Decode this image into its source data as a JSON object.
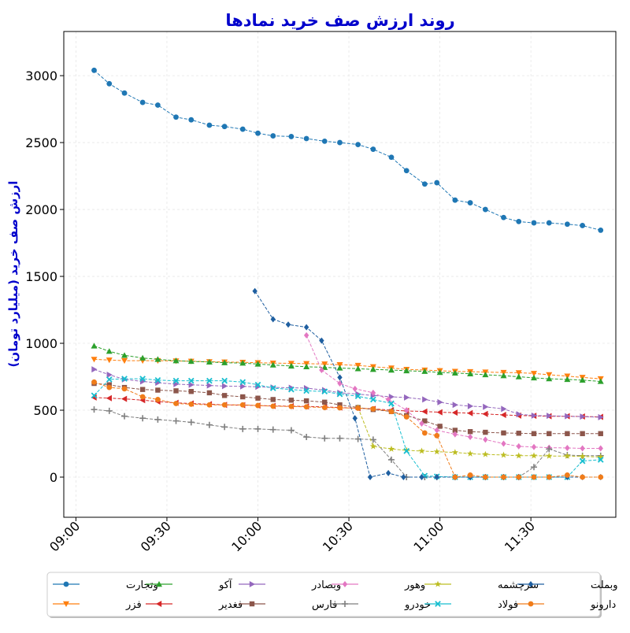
{
  "chart_data": {
    "type": "line",
    "title": "روند ارزش صف خرید نمادها",
    "xlabel": "",
    "ylabel": "ارزش صف خرید (میلیارد تومان)",
    "title_color": "#0000cc",
    "ylim": [
      -300,
      3330
    ],
    "xlim_minutes": [
      536,
      718
    ],
    "yticks": [
      0,
      500,
      1000,
      1500,
      2000,
      2500,
      3000
    ],
    "xticks": [
      {
        "value": "09:00",
        "min": 540
      },
      {
        "value": "09:30",
        "min": 570
      },
      {
        "value": "10:00",
        "min": 600
      },
      {
        "value": "10:30",
        "min": 630
      },
      {
        "value": "11:00",
        "min": 660
      },
      {
        "value": "11:30",
        "min": 690
      }
    ],
    "grid": true,
    "legend_position": "bottom",
    "series": [
      {
        "name": "وتجارت",
        "color": "#1f77b4",
        "marker": "circle",
        "x": [
          "09:06",
          "09:11",
          "09:16",
          "09:22",
          "09:27",
          "09:33",
          "09:38",
          "09:44",
          "09:49",
          "09:55",
          "10:00",
          "10:05",
          "10:11",
          "10:16",
          "10:22",
          "10:27",
          "10:33",
          "10:38",
          "10:44",
          "10:49",
          "10:55",
          "10:59",
          "11:05",
          "11:10",
          "11:15",
          "11:21",
          "11:26",
          "11:31",
          "11:36",
          "11:42",
          "11:47",
          "11:53"
        ],
        "values": [
          3040,
          2940,
          2870,
          2800,
          2780,
          2690,
          2670,
          2630,
          2620,
          2600,
          2570,
          2550,
          2545,
          2530,
          2510,
          2500,
          2485,
          2450,
          2390,
          2290,
          2190,
          2200,
          2070,
          2050,
          2000,
          1940,
          1910,
          1900,
          1900,
          1890,
          1880,
          1845
        ]
      },
      {
        "name": "فزر",
        "color": "#ff7f0e",
        "marker": "triangle-down",
        "x": [
          "09:06",
          "09:11",
          "09:16",
          "09:22",
          "09:27",
          "09:33",
          "09:38",
          "09:44",
          "09:49",
          "09:55",
          "10:00",
          "10:05",
          "10:11",
          "10:16",
          "10:22",
          "10:27",
          "10:33",
          "10:38",
          "10:44",
          "10:49",
          "10:55",
          "11:00",
          "11:05",
          "11:10",
          "11:15",
          "11:21",
          "11:26",
          "11:31",
          "11:36",
          "11:42",
          "11:47",
          "11:53"
        ],
        "values": [
          880,
          875,
          870,
          870,
          870,
          868,
          866,
          862,
          860,
          858,
          855,
          852,
          850,
          848,
          845,
          840,
          835,
          825,
          815,
          805,
          800,
          795,
          790,
          788,
          785,
          782,
          780,
          775,
          765,
          755,
          745,
          735
        ]
      },
      {
        "name": "آکو",
        "color": "#2ca02c",
        "marker": "triangle-up",
        "x": [
          "09:06",
          "09:11",
          "09:16",
          "09:22",
          "09:27",
          "09:33",
          "09:38",
          "09:44",
          "09:49",
          "09:55",
          "10:00",
          "10:05",
          "10:11",
          "10:16",
          "10:22",
          "10:27",
          "10:33",
          "10:38",
          "10:44",
          "10:49",
          "10:55",
          "11:00",
          "11:05",
          "11:10",
          "11:15",
          "11:21",
          "11:26",
          "11:31",
          "11:36",
          "11:42",
          "11:47",
          "11:53"
        ],
        "values": [
          980,
          940,
          910,
          890,
          880,
          870,
          865,
          860,
          855,
          852,
          845,
          838,
          830,
          825,
          820,
          815,
          810,
          805,
          800,
          795,
          790,
          782,
          778,
          772,
          765,
          758,
          750,
          742,
          735,
          730,
          725,
          715
        ]
      },
      {
        "name": "فغدیر",
        "color": "#d62728",
        "marker": "triangle-left",
        "x": [
          "09:06",
          "09:11",
          "09:16",
          "09:22",
          "09:27",
          "09:33",
          "09:38",
          "09:44",
          "09:49",
          "09:55",
          "10:00",
          "10:05",
          "10:11",
          "10:16",
          "10:22",
          "10:27",
          "10:33",
          "10:38",
          "10:44",
          "10:49",
          "10:55",
          "11:00",
          "11:05",
          "11:10",
          "11:15",
          "11:21",
          "11:26",
          "11:31",
          "11:36",
          "11:42",
          "11:47",
          "11:53"
        ],
        "values": [
          595,
          590,
          585,
          575,
          565,
          555,
          550,
          545,
          540,
          538,
          535,
          532,
          530,
          528,
          525,
          520,
          515,
          510,
          500,
          495,
          490,
          485,
          482,
          478,
          472,
          465,
          460,
          458,
          455,
          455,
          453,
          450
        ]
      },
      {
        "name": "وبصادر",
        "color": "#9467bd",
        "marker": "triangle-right",
        "x": [
          "09:06",
          "09:11",
          "09:16",
          "09:22",
          "09:27",
          "09:33",
          "09:38",
          "09:44",
          "09:49",
          "09:55",
          "10:00",
          "10:05",
          "10:11",
          "10:16",
          "10:22",
          "10:27",
          "10:33",
          "10:38",
          "10:44",
          "10:49",
          "10:55",
          "11:00",
          "11:05",
          "11:10",
          "11:15",
          "11:21",
          "11:26",
          "11:31",
          "11:36",
          "11:42",
          "11:47",
          "11:53"
        ],
        "values": [
          805,
          765,
          730,
          715,
          705,
          695,
          690,
          685,
          680,
          678,
          675,
          670,
          668,
          665,
          650,
          630,
          620,
          610,
          600,
          595,
          580,
          560,
          540,
          530,
          525,
          510,
          470,
          460,
          458,
          455,
          452,
          448
        ]
      },
      {
        "name": "فارس",
        "color": "#8c564b",
        "marker": "square",
        "x": [
          "09:06",
          "09:11",
          "09:16",
          "09:22",
          "09:27",
          "09:33",
          "09:38",
          "09:44",
          "09:49",
          "09:55",
          "10:00",
          "10:05",
          "10:11",
          "10:16",
          "10:22",
          "10:27",
          "10:33",
          "10:38",
          "10:44",
          "10:49",
          "10:55",
          "11:00",
          "11:05",
          "11:10",
          "11:15",
          "11:21",
          "11:26",
          "11:31",
          "11:36",
          "11:42",
          "11:47",
          "11:53"
        ],
        "values": [
          700,
          690,
          670,
          655,
          650,
          645,
          640,
          630,
          610,
          600,
          590,
          580,
          575,
          570,
          560,
          540,
          520,
          505,
          490,
          460,
          420,
          380,
          350,
          340,
          335,
          330,
          328,
          325,
          325,
          325,
          325,
          325
        ]
      },
      {
        "name": "وهور",
        "color": "#e377c2",
        "marker": "diamond",
        "x": [
          "10:16",
          "10:21",
          "10:27",
          "10:32",
          "10:38",
          "10:43",
          "10:49",
          "10:54",
          "10:59",
          "11:05",
          "11:10",
          "11:15",
          "11:21",
          "11:26",
          "11:31",
          "11:36",
          "11:42",
          "11:47",
          "11:53"
        ],
        "values": [
          1060,
          800,
          700,
          660,
          630,
          580,
          500,
          400,
          350,
          320,
          300,
          280,
          250,
          230,
          225,
          220,
          218,
          215,
          215
        ]
      },
      {
        "name": "خودرو",
        "color": "#7f7f7f",
        "marker": "plus",
        "x": [
          "09:06",
          "09:11",
          "09:16",
          "09:22",
          "09:27",
          "09:33",
          "09:38",
          "09:44",
          "09:49",
          "09:55",
          "10:00",
          "10:05",
          "10:11",
          "10:16",
          "10:22",
          "10:27",
          "10:33",
          "10:38",
          "10:44",
          "10:49",
          "10:55",
          "10:59",
          "11:05",
          "11:10",
          "11:15",
          "11:21",
          "11:26",
          "11:31",
          "11:36",
          "11:42",
          "11:47",
          "11:53"
        ],
        "values": [
          505,
          495,
          455,
          440,
          430,
          420,
          410,
          390,
          375,
          360,
          360,
          355,
          350,
          300,
          290,
          290,
          285,
          280,
          130,
          0,
          0,
          0,
          0,
          0,
          0,
          0,
          0,
          75,
          210,
          165,
          160,
          160
        ]
      },
      {
        "name": "سرچشمه",
        "color": "#bcbd22",
        "marker": "star",
        "x": [
          "10:33",
          "10:38",
          "10:44",
          "10:49",
          "10:54",
          "10:59",
          "11:05",
          "11:10",
          "11:15",
          "11:21",
          "11:26",
          "11:31",
          "11:36",
          "11:42",
          "11:47",
          "11:53"
        ],
        "values": [
          520,
          230,
          210,
          200,
          195,
          190,
          185,
          175,
          170,
          165,
          160,
          160,
          158,
          158,
          155,
          150
        ]
      },
      {
        "name": "فولاد",
        "color": "#17becf",
        "marker": "x",
        "x": [
          "09:06",
          "09:11",
          "09:16",
          "09:22",
          "09:27",
          "09:33",
          "09:38",
          "09:44",
          "09:49",
          "09:55",
          "10:00",
          "10:05",
          "10:11",
          "10:16",
          "10:22",
          "10:27",
          "10:33",
          "10:38",
          "10:44",
          "10:49",
          "10:55",
          "10:59",
          "11:05",
          "11:10",
          "11:15",
          "11:21",
          "11:26",
          "11:31",
          "11:36",
          "11:42",
          "11:47",
          "11:53"
        ],
        "values": [
          610,
          730,
          735,
          735,
          725,
          720,
          720,
          720,
          720,
          710,
          690,
          665,
          655,
          645,
          640,
          620,
          605,
          580,
          550,
          195,
          10,
          5,
          0,
          0,
          0,
          0,
          0,
          0,
          0,
          0,
          120,
          130
        ]
      },
      {
        "name": "وبملت",
        "color": "#1f5fa0",
        "marker": "diamond-filled",
        "x": [
          "09:59",
          "10:05",
          "10:10",
          "10:16",
          "10:21",
          "10:27",
          "10:32",
          "10:37",
          "10:43",
          "10:48",
          "10:54",
          "10:59",
          "11:05",
          "11:10",
          "11:15",
          "11:21",
          "11:26",
          "11:31",
          "11:36",
          "11:42",
          "11:47",
          "11:53"
        ],
        "values": [
          1390,
          1180,
          1140,
          1120,
          1020,
          745,
          440,
          0,
          30,
          0,
          0,
          0,
          0,
          0,
          0,
          0,
          0,
          0,
          0,
          0,
          0,
          0
        ]
      },
      {
        "name": "دارونو",
        "color": "#f07c1a",
        "marker": "circle",
        "x": [
          "09:06",
          "09:11",
          "09:16",
          "09:22",
          "09:27",
          "09:33",
          "09:38",
          "09:44",
          "09:49",
          "09:55",
          "10:00",
          "10:05",
          "10:11",
          "10:16",
          "10:22",
          "10:27",
          "10:33",
          "10:38",
          "10:44",
          "10:49",
          "10:55",
          "10:59",
          "11:05",
          "11:10",
          "11:15",
          "11:21",
          "11:26",
          "11:31",
          "11:36",
          "11:42",
          "11:47",
          "11:53"
        ],
        "values": [
          710,
          670,
          660,
          600,
          580,
          550,
          545,
          540,
          540,
          540,
          535,
          530,
          528,
          525,
          520,
          518,
          515,
          510,
          490,
          450,
          330,
          310,
          0,
          15,
          0,
          0,
          0,
          0,
          0,
          15,
          0,
          0
        ]
      }
    ]
  }
}
